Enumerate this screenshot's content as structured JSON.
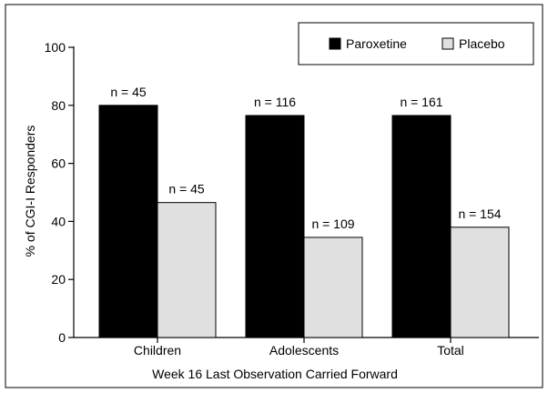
{
  "chart_data": {
    "type": "bar",
    "categories": [
      "Children",
      "Adolescents",
      "Total"
    ],
    "series": [
      {
        "name": "Paroxetine",
        "values": [
          80,
          76.5,
          76.5
        ],
        "labels": [
          "n = 45",
          "n = 116",
          "n = 161"
        ],
        "color": "#000000"
      },
      {
        "name": "Placebo",
        "values": [
          46.5,
          34.5,
          38
        ],
        "labels": [
          "n = 45",
          "n = 109",
          "n = 154"
        ],
        "color": "#e0e0e0"
      }
    ],
    "ylabel": "% of CGI-I Responders",
    "xlabel": "Week 16 Last Observation Carried Forward",
    "ylim": [
      0,
      100
    ],
    "yticks": [
      0,
      20,
      40,
      60,
      80,
      100
    ],
    "legend": "top-right",
    "grid": false
  }
}
